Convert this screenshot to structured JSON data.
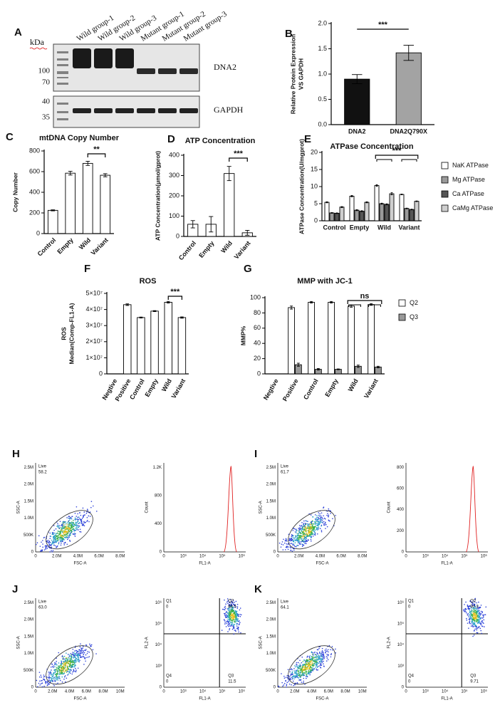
{
  "blot": {
    "panel": "A",
    "unit": "kDa",
    "lanes": [
      "Wild group-1",
      "Wild group-2",
      "Wild group-3",
      "Mutant group-1",
      "Mutant group-2",
      "Mutant group-3"
    ],
    "markers": [
      "100",
      "70",
      "40",
      "35"
    ],
    "proteins": [
      "DNA2",
      "GAPDH"
    ]
  },
  "chart_data": [
    {
      "type": "bar",
      "panel": "B",
      "ylabel": [
        "Relative Protein Expression",
        "VS GAPDH"
      ],
      "categories": [
        "DNA2",
        "DNA2Q790X"
      ],
      "values": [
        0.9,
        1.42
      ],
      "errors": [
        0.09,
        0.15
      ],
      "colors": [
        "#111111",
        "#a3a3a3"
      ],
      "ylim": [
        0,
        2
      ],
      "yticks": [
        {
          "value": 0,
          "label": "0.0"
        },
        0.5,
        {
          "value": 1,
          "label": "1.0"
        },
        1.5,
        {
          "value": 2,
          "label": "2.0"
        }
      ],
      "significance": "***"
    },
    {
      "type": "bar",
      "panel": "C",
      "title": "mtDNA  Copy Number",
      "ylabel": "Copy Number",
      "categories": [
        "Control",
        "Empty",
        "Wild",
        "Variant"
      ],
      "values": [
        225,
        585,
        680,
        565
      ],
      "errors": [
        5,
        18,
        20,
        15
      ],
      "color": "#ffffff",
      "ylim": [
        0,
        800
      ],
      "yticks": [
        0,
        200,
        400,
        600,
        800
      ],
      "significance": "**"
    },
    {
      "type": "bar",
      "panel": "D",
      "title": "ATP Concentration",
      "ylabel": "ATP Concentration(μmol/gprot)",
      "categories": [
        "Control",
        "Empty",
        "Wild",
        "Variant"
      ],
      "values": [
        60,
        60,
        310,
        18
      ],
      "errors": [
        18,
        38,
        35,
        12
      ],
      "color": "#ffffff",
      "ylim": [
        0,
        400
      ],
      "yticks": [
        0,
        100,
        200,
        300,
        400
      ],
      "significance": "***"
    },
    {
      "type": "bar",
      "panel": "E",
      "title": "ATPase Concentration",
      "ylabel": "ATPase Concentration(U/mgprot)",
      "categories": [
        "Control",
        "Empty",
        "Wild",
        "Variant"
      ],
      "series": [
        {
          "name": "NaK ATPase",
          "color": "#ffffff",
          "values": [
            5.4,
            7.2,
            10.3,
            7.7
          ],
          "errors": [
            0.15,
            0.2,
            0.25,
            0.1
          ]
        },
        {
          "name": "Mg ATPase",
          "color": "#9a9a9a",
          "values": [
            2.3,
            3.1,
            5.0,
            3.6
          ],
          "errors": [
            0.1,
            0.15,
            0.15,
            0.1
          ]
        },
        {
          "name": "Ca ATPase",
          "color": "#555555",
          "values": [
            2.2,
            2.8,
            4.8,
            3.3
          ],
          "errors": [
            0.1,
            0.15,
            0.15,
            0.1
          ]
        },
        {
          "name": "CaMg ATPase",
          "color": "#cfcfcf",
          "values": [
            4.0,
            5.4,
            7.9,
            5.7
          ],
          "errors": [
            0.15,
            0.15,
            0.3,
            0.1
          ]
        }
      ],
      "ylim": [
        0,
        20
      ],
      "yticks": [
        0,
        5,
        10,
        15,
        20
      ],
      "significance": "***"
    },
    {
      "type": "bar",
      "panel": "F",
      "title": "ROS",
      "ylabel": [
        "ROS",
        "Median(Comp-FL1-A)"
      ],
      "categories": [
        "Negtive",
        "Positive",
        "Control",
        "Empty",
        "Wild",
        "Variant"
      ],
      "values": [
        0,
        43000000,
        35000000,
        39000000,
        44500000,
        35000000
      ],
      "errors": [
        0,
        500000,
        300000,
        300000,
        500000,
        400000
      ],
      "color": "#ffffff",
      "ylim": [
        0,
        50000000
      ],
      "yticks": [
        0,
        {
          "value": 10000000,
          "label": "1×10⁷"
        },
        {
          "value": 20000000,
          "label": "2×10⁷"
        },
        {
          "value": 30000000,
          "label": "3×10⁷"
        },
        {
          "value": 40000000,
          "label": "4×10⁷"
        },
        {
          "value": 50000000,
          "label": "5×10⁷"
        }
      ],
      "significance": "***"
    },
    {
      "type": "bar",
      "panel": "G",
      "title": "MMP with JC-1",
      "ylabel": "MMP%",
      "categories": [
        "Negtive",
        "Positive",
        "Control",
        "Empty",
        "Wild",
        "Variant"
      ],
      "series": [
        {
          "name": "Q2",
          "color": "#ffffff",
          "values": [
            0,
            87,
            94,
            94,
            89,
            91
          ],
          "errors": [
            0,
            2,
            1,
            1,
            1.5,
            1
          ]
        },
        {
          "name": "Q3",
          "color": "#999999",
          "values": [
            0,
            12,
            6,
            6,
            10,
            9
          ],
          "errors": [
            0,
            2,
            1,
            0.5,
            1.5,
            1
          ]
        }
      ],
      "ylim": [
        0,
        100
      ],
      "yticks": [
        0,
        20,
        40,
        60,
        80,
        100
      ],
      "significance": "ns"
    }
  ],
  "flow": [
    {
      "panel": "H",
      "scatter": {
        "gate_label": "Live",
        "gate_value": "58.2",
        "xlabel": "FSC-A",
        "ylabel": "SSC-A",
        "xticks": [
          "0",
          "2.0M",
          "4.0M",
          "6.0M",
          "8.0M"
        ],
        "yticks": [
          "0",
          "500K",
          "1.0M",
          "1.5M",
          "2.0M",
          "2.5M"
        ]
      },
      "second": {
        "kind": "histogram",
        "xlabel": "FL1-A",
        "ylabel": "Count",
        "xticks": [
          "0",
          "10³",
          "10⁴",
          "10⁵",
          "10⁶"
        ],
        "yticks": [
          "0",
          "400",
          "800",
          "1.2K"
        ]
      }
    },
    {
      "panel": "I",
      "scatter": {
        "gate_label": "Live",
        "gate_value": "61.7",
        "xlabel": "FSC-A",
        "ylabel": "SSC-A",
        "xticks": [
          "0",
          "2.0M",
          "4.0M",
          "6.0M",
          "8.0M"
        ],
        "yticks": [
          "0",
          "500K",
          "1.0M",
          "1.5M",
          "2.0M",
          "2.5M"
        ]
      },
      "second": {
        "kind": "histogram",
        "xlabel": "FL1-A",
        "ylabel": "Count",
        "xticks": [
          "0",
          "10³",
          "10⁴",
          "10⁵",
          "10⁶"
        ],
        "yticks": [
          "0",
          "200",
          "400",
          "600",
          "800"
        ]
      }
    },
    {
      "panel": "J",
      "scatter": {
        "gate_label": "Live",
        "gate_value": "63.0",
        "xlabel": "FSC-A",
        "ylabel": "SSC-A",
        "xticks": [
          "0",
          "2.0M",
          "4.0M",
          "6.0M",
          "8.0M",
          "10M"
        ],
        "yticks": [
          "0",
          "500K",
          "1.0M",
          "1.5M",
          "2.0M",
          "2.5M"
        ]
      },
      "second": {
        "kind": "quadrant",
        "xlabel": "FL1-A",
        "ylabel": "FL2-A",
        "xticks": [
          "0",
          "10³",
          "10⁴",
          "10⁵",
          "10⁶"
        ],
        "yticks": [
          "0",
          "10³",
          "10⁴",
          "10⁵",
          "10⁶"
        ],
        "q1": [
          "Q1",
          "0"
        ],
        "q2": [
          "Q2",
          "88.5"
        ],
        "q3": [
          "Q3",
          "11.5"
        ],
        "q4": [
          "Q4",
          "0"
        ]
      }
    },
    {
      "panel": "K",
      "scatter": {
        "gate_label": "Live",
        "gate_value": "64.1",
        "xlabel": "FSC-A",
        "ylabel": "SSC-A",
        "xticks": [
          "0",
          "2.0M",
          "4.0M",
          "6.0M",
          "8.0M",
          "10M"
        ],
        "yticks": [
          "0",
          "500K",
          "1.0M",
          "1.5M",
          "2.0M",
          "2.5M"
        ]
      },
      "second": {
        "kind": "quadrant",
        "xlabel": "FL1-A",
        "ylabel": "FL2-A",
        "xticks": [
          "0",
          "10³",
          "10⁴",
          "10⁵",
          "10⁶"
        ],
        "yticks": [
          "0",
          "10³",
          "10⁴",
          "10⁵",
          "10⁶"
        ],
        "q1": [
          "Q1",
          "0"
        ],
        "q2": [
          "Q2",
          "90.3"
        ],
        "q3": [
          "Q3",
          "9.71"
        ],
        "q4": [
          "Q4",
          "0"
        ]
      }
    }
  ]
}
